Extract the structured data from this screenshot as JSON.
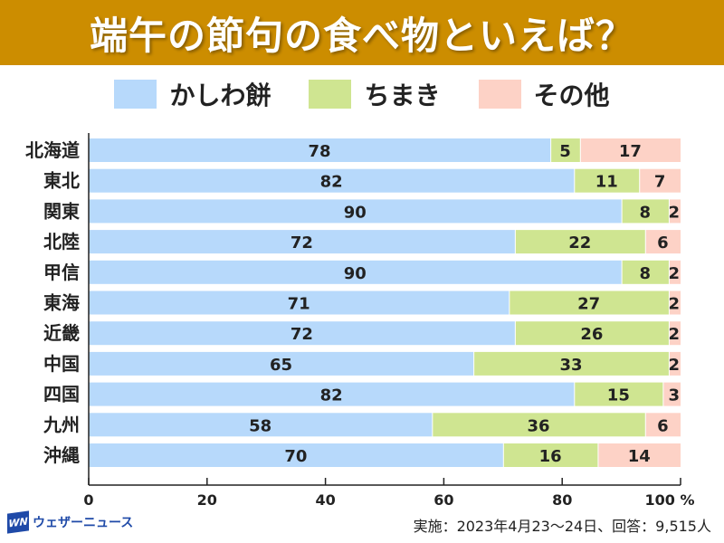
{
  "chart_data": {
    "type": "bar",
    "orientation": "horizontal",
    "stacked": true,
    "title": "端午の節句の食べ物といえば？",
    "categories": [
      "北海道",
      "東北",
      "関東",
      "北陸",
      "甲信",
      "東海",
      "近畿",
      "中国",
      "四国",
      "九州",
      "沖縄"
    ],
    "series": [
      {
        "name": "かしわ餅",
        "color": "#b7d9fb",
        "values": [
          78,
          82,
          90,
          72,
          90,
          71,
          72,
          65,
          82,
          58,
          70
        ]
      },
      {
        "name": "ちまき",
        "color": "#cfe591",
        "values": [
          5,
          11,
          8,
          22,
          8,
          27,
          26,
          33,
          15,
          36,
          16
        ]
      },
      {
        "name": "その他",
        "color": "#fdd2c6",
        "values": [
          17,
          7,
          2,
          6,
          2,
          2,
          2,
          2,
          3,
          6,
          14
        ]
      }
    ],
    "xlim": [
      0,
      100
    ],
    "xticks": [
      "0",
      "20",
      "40",
      "60",
      "80",
      "100 %"
    ],
    "legend": "top",
    "grid": false
  },
  "title_bar_color": "#cc8d00",
  "footer": {
    "logo_mark": "WN",
    "logo_text": "ウェザーニュース",
    "note": "実施：2023年4月23～24日、回答：9,515人"
  }
}
